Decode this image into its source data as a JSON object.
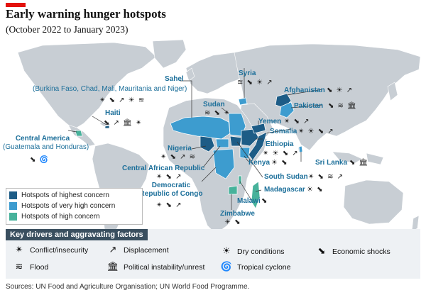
{
  "header": {
    "title": "Early warning hunger hotspots",
    "subtitle": "(October 2022 to January 2023)"
  },
  "colors": {
    "highest": "#1d5c86",
    "very_high": "#3d9ccf",
    "high": "#47b29b",
    "land": "#c8ced4",
    "accent_red": "#e3120b",
    "label": "#1c6f9a"
  },
  "legend": [
    {
      "label": "Hotspots of highest concern",
      "level": "highest"
    },
    {
      "label": "Hotspots of very high concern",
      "level": "very_high"
    },
    {
      "label": "Hotspots of high concern",
      "level": "high"
    }
  ],
  "drivers": {
    "heading": "Key drivers and aggravating factors",
    "items": [
      {
        "label": "Conflict/insecurity",
        "icon": "conflict-icon",
        "glyph": "✴"
      },
      {
        "label": "Displacement",
        "icon": "displacement-icon",
        "glyph": "↗"
      },
      {
        "label": "Dry conditions",
        "icon": "dry-conditions-icon",
        "glyph": "☀"
      },
      {
        "label": "Economic shocks",
        "icon": "economic-shocks-icon",
        "glyph": "⬊"
      },
      {
        "label": "Flood",
        "icon": "flood-icon",
        "glyph": "≋"
      },
      {
        "label": "Political instability/unrest",
        "icon": "political-instability-icon",
        "glyph": "🏛"
      },
      {
        "label": "Tropical cyclone",
        "icon": "tropical-cyclone-icon",
        "glyph": "🌀"
      }
    ]
  },
  "hotspots": [
    {
      "name": "Sahel",
      "note": "(Burkina Faso, Chad, Mali, Mauritania and Niger)",
      "level": "very_high",
      "icons": "✴ ⬊ ↗ ☀ ≋"
    },
    {
      "name": "Haiti",
      "level": "highest",
      "icons": "⬊ ↗ 🏛 ✴"
    },
    {
      "name": "Central America",
      "note": "(Guatemala and Honduras)",
      "level": "high",
      "icons": "⬊ 🌀"
    },
    {
      "name": "Nigeria",
      "level": "highest",
      "icons": "✴ ⬊ ↗ ≋"
    },
    {
      "name": "Central African Republic",
      "level": "very_high",
      "icons": "✴ ⬊ ↗"
    },
    {
      "name": "Democratic Republic of Congo",
      "level": "very_high",
      "icons": "✴ ⬊ ↗"
    },
    {
      "name": "Syria",
      "level": "very_high",
      "icons": "≋ ⬊ ☀ ↗"
    },
    {
      "name": "Sudan",
      "level": "very_high",
      "icons": "≋ ⬊ ✴"
    },
    {
      "name": "Afghanistan",
      "level": "highest",
      "icons": "⬊ ☀ ↗"
    },
    {
      "name": "Pakistan",
      "level": "very_high",
      "icons": "⬊ ≋ 🏛"
    },
    {
      "name": "Yemen",
      "level": "highest",
      "icons": "✴ ⬊ ↗"
    },
    {
      "name": "Somalia",
      "level": "highest",
      "icons": "✴ ☀ ⬊ ↗"
    },
    {
      "name": "Ethiopia",
      "level": "highest",
      "icons": "✴ ☀ ⬊ ↗"
    },
    {
      "name": "Kenya",
      "level": "very_high",
      "icons": "☀ ⬊"
    },
    {
      "name": "Sri Lanka",
      "level": "very_high",
      "icons": "⬊ 🏛"
    },
    {
      "name": "South Sudan",
      "level": "highest",
      "icons": "✴ ⬊ ≋ ↗"
    },
    {
      "name": "Madagascar",
      "level": "high",
      "icons": "☀ ⬊"
    },
    {
      "name": "Malawi",
      "level": "high",
      "icons": "⬊"
    },
    {
      "name": "Zimbabwe",
      "level": "high",
      "icons": "☀ ⬊"
    }
  ],
  "source": "Sources: UN Food and Agriculture Organisation; UN World Food Programme."
}
